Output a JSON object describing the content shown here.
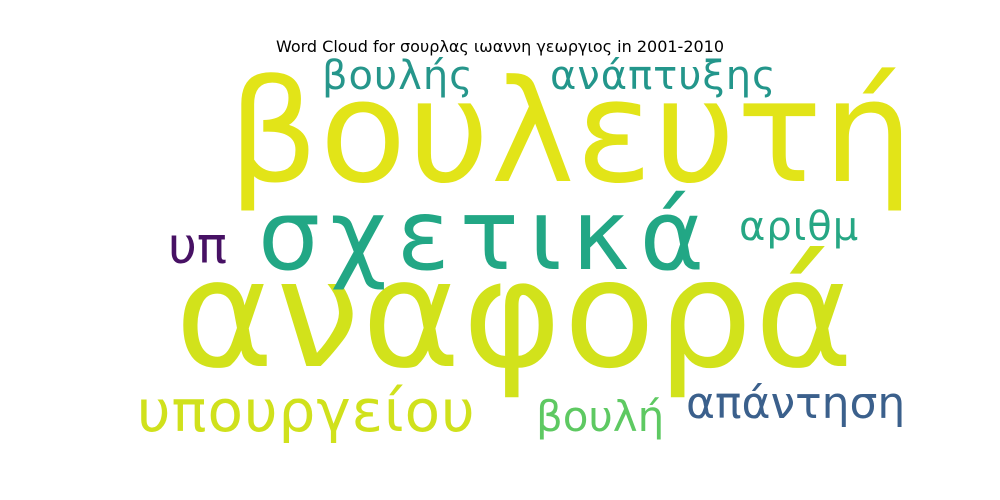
{
  "title": "Word Cloud for σουρλας ιωαννη γεωργιος in 2001-2010",
  "words": {
    "anafora": {
      "text": "αναφορά",
      "color": "#d2e21b"
    },
    "vouleuti": {
      "text": "βουλευτή",
      "color": "#e2e418"
    },
    "sxetika": {
      "text": "σχετικά",
      "color": "#22a785"
    },
    "ypourgeiou": {
      "text": "υπουργείου",
      "color": "#d0e11c"
    },
    "apantisi": {
      "text": "απάντηση",
      "color": "#3b608c"
    },
    "vouli": {
      "text": "βουλή",
      "color": "#5ec962"
    },
    "vouli_s": {
      "text": "βουλής",
      "color": "#26968b"
    },
    "anaptyxis": {
      "text": "ανάπτυξης",
      "color": "#23968b"
    },
    "arithm": {
      "text": "αριθμ",
      "color": "#26a784"
    },
    "yp": {
      "text": "υπ",
      "color": "#471164"
    }
  }
}
